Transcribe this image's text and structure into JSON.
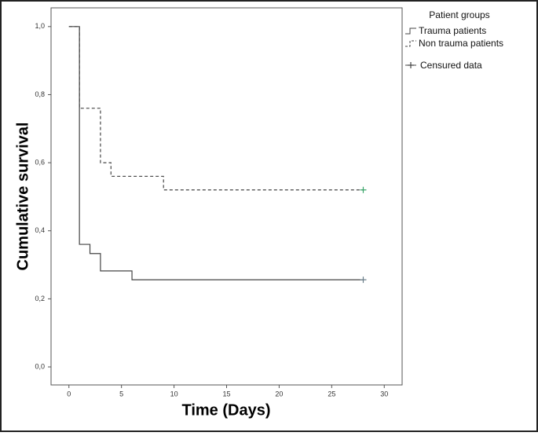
{
  "chart_data": {
    "type": "step",
    "x_label": "Time (Days)",
    "y_label": "Cumulative survival",
    "legend_title": "Patient groups",
    "censored_label": "Censured data",
    "xlim": [
      -1.7,
      31.7
    ],
    "ylim": [
      -0.053,
      1.055
    ],
    "xticks": [
      0,
      5,
      10,
      15,
      20,
      25,
      30
    ],
    "yticks": [
      {
        "value": 0,
        "label": "0,0"
      },
      {
        "value": 0.2,
        "label": "0,2"
      },
      {
        "value": 0.4,
        "label": "0,4"
      },
      {
        "value": 0.6,
        "label": "0,6"
      },
      {
        "value": 0.8,
        "label": "0,8"
      },
      {
        "value": 1,
        "label": "1,0"
      }
    ],
    "series": [
      {
        "name": "Trauma patients",
        "color": "#444444",
        "dash": false,
        "censor_color": "#6b7f8a",
        "x": [
          0,
          1,
          2,
          3,
          6,
          28
        ],
        "values": [
          1,
          0.36,
          0.333,
          0.282,
          0.256,
          0.256
        ],
        "censored_x": [
          28
        ],
        "censored_values": [
          0.256
        ]
      },
      {
        "name": "Non trauma patients",
        "color": "#444444",
        "dash": true,
        "censor_color": "#3aa56a",
        "x": [
          0,
          1,
          3,
          4,
          9,
          28
        ],
        "values": [
          1,
          0.76,
          0.6,
          0.56,
          0.52,
          0.52
        ],
        "censored_x": [
          28
        ],
        "censored_values": [
          0.52
        ]
      }
    ]
  }
}
